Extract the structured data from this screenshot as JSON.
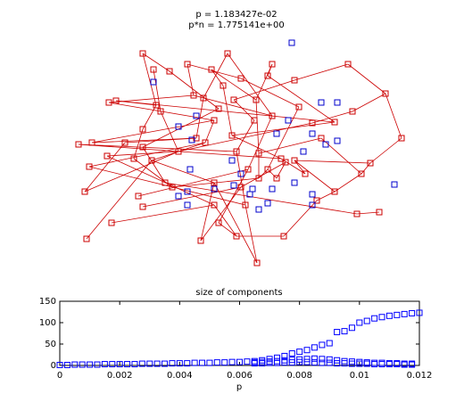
{
  "chart_data": [
    {
      "type": "network",
      "title": "p = 1.183427e-02",
      "subtitle": "p*n = 1.775141e+00",
      "xlim": [
        70,
        470
      ],
      "ylim": [
        310,
        30
      ],
      "series": [
        {
          "color": "#cc0000",
          "x": [
            160,
            255,
            305,
            210,
            172,
            237,
            270,
            190,
            330,
            250,
            300,
            122,
            130,
            217,
            228,
            262,
            175,
            245,
            287,
            390,
            432,
            395,
            375,
            450,
            415,
            180,
            160,
            240,
            285,
            305,
            335,
            350,
            360,
            220,
            260,
            230,
            200,
            160,
            140,
            88,
            103,
            100,
            120,
            150,
            170,
            265,
            290,
            315,
            330,
            278,
            300,
            240,
            270,
            185,
            155,
            95,
            125,
            97,
            160,
            193,
            240,
            275,
            245,
            225,
            265,
            318,
            355,
            375,
            400,
            425,
            405,
            342,
            288,
            290,
            310,
            320
          ],
          "values": [
            60,
            60,
            72,
            72,
            78,
            78,
            88,
            80,
            90,
            96,
            85,
            115,
            113,
            107,
            110,
            112,
            118,
            122,
            112,
            72,
            105,
            125,
            137,
            155,
            183,
            125,
            145,
            135,
            135,
            130,
            120,
            138,
            155,
            155,
            152,
            160,
            170,
            165,
            160,
            162,
            160,
            187,
            175,
            178,
            180,
            170,
            172,
            178,
            180,
            190,
            190,
            205,
            210,
            205,
            220,
            215,
            250,
            268,
            232,
            210,
            230,
            230,
            250,
            270,
            265,
            265,
            225,
            215,
            240,
            238,
            195,
            195,
            295,
            200,
            200,
            182
          ]
        },
        {
          "color": "#0000cc",
          "x": [
            327,
            172,
            360,
            378,
            220,
            323,
            200,
            215,
            310,
            350,
            365,
            378,
            340,
            213,
            260,
            270,
            283,
            305,
            330,
            350,
            210,
            200,
            240,
            280,
            290,
            300,
            350,
            210,
            442,
            262
          ],
          "values": [
            48,
            92,
            115,
            115,
            130,
            135,
            142,
            157,
            150,
            150,
            162,
            158,
            170,
            190,
            180,
            195,
            212,
            212,
            205,
            218,
            215,
            220,
            212,
            218,
            235,
            228,
            230,
            230,
            207,
            208
          ]
        }
      ],
      "edges": [
        [
          0,
          16
        ],
        [
          0,
          7
        ],
        [
          3,
          13
        ],
        [
          3,
          6
        ],
        [
          1,
          14
        ],
        [
          5,
          9
        ],
        [
          4,
          25
        ],
        [
          7,
          17
        ],
        [
          2,
          18
        ],
        [
          2,
          10
        ],
        [
          10,
          22
        ],
        [
          8,
          19
        ],
        [
          8,
          15
        ],
        [
          19,
          20
        ],
        [
          20,
          23
        ],
        [
          20,
          21
        ],
        [
          21,
          31
        ],
        [
          22,
          34
        ],
        [
          23,
          24
        ],
        [
          24,
          48
        ],
        [
          11,
          13
        ],
        [
          11,
          27
        ],
        [
          12,
          16
        ],
        [
          13,
          29
        ],
        [
          14,
          33
        ],
        [
          15,
          28
        ],
        [
          6,
          30
        ],
        [
          9,
          34
        ],
        [
          16,
          26
        ],
        [
          17,
          37
        ],
        [
          18,
          46
        ],
        [
          25,
          36
        ],
        [
          26,
          43
        ],
        [
          27,
          35
        ],
        [
          28,
          45
        ],
        [
          29,
          49
        ],
        [
          30,
          50
        ],
        [
          31,
          36
        ],
        [
          32,
          46
        ],
        [
          33,
          38
        ],
        [
          34,
          47
        ],
        [
          35,
          44
        ],
        [
          36,
          42
        ],
        [
          37,
          53
        ],
        [
          38,
          55
        ],
        [
          39,
          45
        ],
        [
          40,
          33
        ],
        [
          41,
          35
        ],
        [
          42,
          60
        ],
        [
          43,
          59
        ],
        [
          44,
          51
        ],
        [
          45,
          61
        ],
        [
          46,
          73
        ],
        [
          47,
          71
        ],
        [
          48,
          67
        ],
        [
          49,
          62
        ],
        [
          50,
          74
        ],
        [
          51,
          63
        ],
        [
          52,
          75
        ],
        [
          53,
          68
        ],
        [
          54,
          49
        ],
        [
          55,
          36
        ],
        [
          56,
          60
        ],
        [
          57,
          44
        ],
        [
          58,
          52
        ],
        [
          59,
          73
        ],
        [
          60,
          64
        ],
        [
          61,
          72
        ],
        [
          62,
          64
        ],
        [
          63,
          52
        ],
        [
          64,
          65
        ],
        [
          65,
          66
        ],
        [
          66,
          67
        ],
        [
          67,
          70
        ],
        [
          68,
          69
        ],
        [
          70,
          24
        ],
        [
          71,
          48
        ],
        [
          72,
          51
        ],
        [
          74,
          75
        ],
        [
          73,
          50
        ],
        [
          39,
          47
        ],
        [
          40,
          27
        ],
        [
          5,
          18
        ],
        [
          12,
          22
        ],
        [
          1,
          29
        ],
        [
          41,
          61
        ],
        [
          32,
          70
        ]
      ],
      "edge_color": "#cc0000"
    },
    {
      "type": "scatter",
      "title": "size of components",
      "xlabel": "p",
      "xlim": [
        0,
        0.012
      ],
      "xticks": [
        0,
        0.002,
        0.004,
        0.006,
        0.008,
        0.01,
        0.012
      ],
      "ylim": [
        0,
        150
      ],
      "yticks": [
        0,
        50,
        100,
        150
      ],
      "series": [
        {
          "color": "#0000ff",
          "x": [
            0,
            0.00025,
            0.0005,
            0.00075,
            0.001,
            0.00125,
            0.0015,
            0.00175,
            0.002,
            0.00225,
            0.0025,
            0.00275,
            0.003,
            0.00325,
            0.0035,
            0.00375,
            0.004,
            0.00425,
            0.0045,
            0.00475,
            0.005,
            0.00525,
            0.0055,
            0.00575,
            0.006,
            0.00625,
            0.0065,
            0.00675,
            0.007,
            0.00725,
            0.0075,
            0.00775,
            0.008,
            0.00825,
            0.0085,
            0.00875,
            0.009,
            0.00925,
            0.0095,
            0.00975,
            0.01,
            0.01025,
            0.0105,
            0.01075,
            0.011,
            0.01125,
            0.0115,
            0.01175,
            0.012
          ],
          "values": [
            1,
            1,
            2,
            2,
            2,
            2,
            3,
            3,
            3,
            3,
            3,
            4,
            4,
            4,
            4,
            5,
            5,
            5,
            6,
            6,
            6,
            7,
            7,
            8,
            8,
            9,
            10,
            12,
            15,
            18,
            22,
            28,
            32,
            36,
            42,
            48,
            52,
            78,
            80,
            88,
            100,
            104,
            110,
            113,
            116,
            118,
            120,
            122,
            123
          ]
        },
        {
          "color": "#0000ff",
          "x": [
            0.0065,
            0.00675,
            0.007,
            0.00725,
            0.0075,
            0.00775,
            0.008,
            0.00825,
            0.0085,
            0.00875,
            0.009,
            0.00925,
            0.0095,
            0.00975,
            0.01,
            0.01025,
            0.0105,
            0.01075,
            0.011,
            0.01125,
            0.0115,
            0.01175
          ],
          "values": [
            7,
            8,
            9,
            10,
            12,
            13,
            14,
            15,
            16,
            15,
            14,
            12,
            10,
            9,
            8,
            7,
            6,
            6,
            5,
            5,
            4,
            4
          ]
        },
        {
          "color": "#0000ff",
          "x": [
            0.0065,
            0.00675,
            0.007,
            0.00725,
            0.0075,
            0.00775,
            0.008,
            0.00825,
            0.0085,
            0.00875,
            0.009,
            0.00925,
            0.0095,
            0.00975,
            0.01,
            0.01025,
            0.0105,
            0.01075,
            0.011,
            0.01125,
            0.0115,
            0.01175
          ],
          "values": [
            5,
            5,
            6,
            6,
            7,
            7,
            8,
            8,
            7,
            6,
            6,
            5,
            5,
            4,
            4,
            4,
            3,
            3,
            3,
            3,
            2,
            2
          ]
        }
      ]
    }
  ]
}
